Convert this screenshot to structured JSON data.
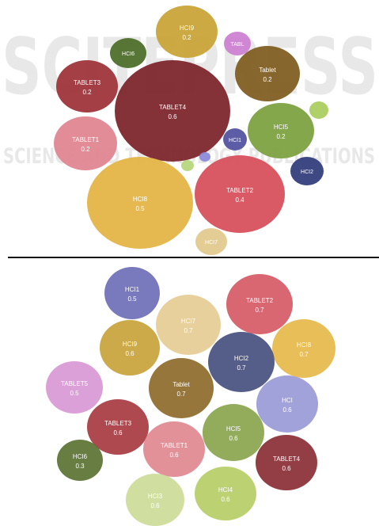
{
  "watermark": {
    "logo_text": "SCITEPRESS",
    "tagline": "SCIENCE AND TECHNOLOGY PUBLICATIONS"
  },
  "chart_data": [
    {
      "type": "bubble",
      "panel": "top",
      "bubbles": [
        {
          "label": "HCI9",
          "value": "0.2",
          "color": "#c8a232"
        },
        {
          "label": "HCI6",
          "value": "",
          "color": "#4a6b26"
        },
        {
          "label": "TABL",
          "value": "",
          "color": "#cc7ed0"
        },
        {
          "label": "TABLET3",
          "value": "0.2",
          "color": "#9b2f35"
        },
        {
          "label": "TABLET4",
          "value": "0.6",
          "color": "#7a2027"
        },
        {
          "label": "Tablet",
          "value": "0.2",
          "color": "#7d5a1b"
        },
        {
          "label": "TABLET1",
          "value": "0.2",
          "color": "#e0828e"
        },
        {
          "label": "HCI1",
          "value": "",
          "color": "#4f4fa0"
        },
        {
          "label": "HCI5",
          "value": "0.2",
          "color": "#7ba03d"
        },
        {
          "label": "",
          "value": "",
          "color": "#a9cc5c"
        },
        {
          "label": "HCI2",
          "value": "",
          "color": "#2e3a78"
        },
        {
          "label": "",
          "value": "",
          "color": "#8888d8"
        },
        {
          "label": "",
          "value": "",
          "color": "#b5d67a"
        },
        {
          "label": "HCI8",
          "value": "0.5",
          "color": "#e3b340"
        },
        {
          "label": "TABLET2",
          "value": "0.4",
          "color": "#d64b58"
        },
        {
          "label": "HCI7",
          "value": "",
          "color": "#e2c98c"
        }
      ]
    },
    {
      "type": "bubble",
      "panel": "bottom",
      "bubbles": [
        {
          "label": "HCI1",
          "value": "0.5",
          "color": "#6e6eb8"
        },
        {
          "label": "TABLET2",
          "value": "0.7",
          "color": "#d65a66"
        },
        {
          "label": "HCI7",
          "value": "0.7",
          "color": "#e5cc94"
        },
        {
          "label": "HCI9",
          "value": "0.6",
          "color": "#c9a33a"
        },
        {
          "label": "HCI8",
          "value": "0.7",
          "color": "#e6b84a"
        },
        {
          "label": "HCI2",
          "value": "0.7",
          "color": "#46507f"
        },
        {
          "label": "TABLET5",
          "value": "0.5",
          "color": "#d898d4"
        },
        {
          "label": "Tablet",
          "value": "0.7",
          "color": "#8d6a2a"
        },
        {
          "label": "HCI",
          "value": "0.6",
          "color": "#9a9ad8"
        },
        {
          "label": "TABLET3",
          "value": "0.6",
          "color": "#a63a40"
        },
        {
          "label": "HCI5",
          "value": "0.6",
          "color": "#8aa54e"
        },
        {
          "label": "TABLET1",
          "value": "0.6",
          "color": "#e08890"
        },
        {
          "label": "HCI6",
          "value": "0.3",
          "color": "#5a7232"
        },
        {
          "label": "TABLET4",
          "value": "0.6",
          "color": "#8a2c34"
        },
        {
          "label": "HCI4",
          "value": "0.6",
          "color": "#b6ce66"
        },
        {
          "label": "HCI3",
          "value": "0.6",
          "color": "#ccdc98"
        }
      ]
    }
  ]
}
